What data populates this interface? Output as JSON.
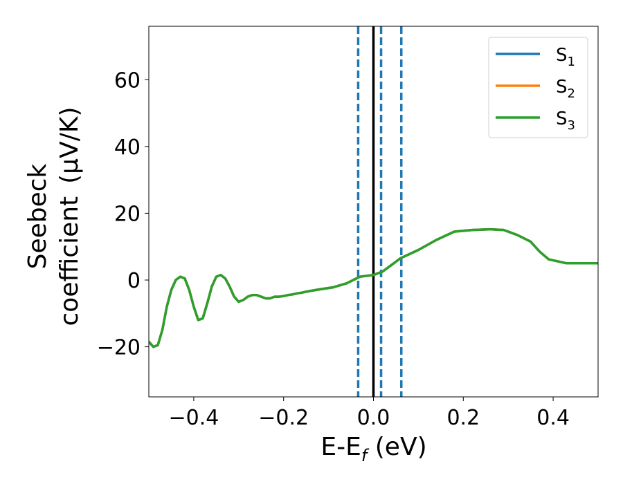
{
  "chart_data": {
    "type": "line",
    "xlabel": "E-E",
    "xlabel_sub": "f",
    "xlabel_unit": " (eV)",
    "ylabel_line1": "Seebeck",
    "ylabel_line2": "coefficient",
    "ylabel_unit": "(μV/K)",
    "xlim": [
      -0.5,
      0.5
    ],
    "ylim": [
      -35,
      76
    ],
    "xticks": [
      -0.4,
      -0.2,
      0.0,
      0.2,
      0.4
    ],
    "xtick_labels": [
      "−0.4",
      "−0.2",
      "0.0",
      "0.2",
      "0.4"
    ],
    "yticks": [
      -20,
      0,
      20,
      40,
      60
    ],
    "ytick_labels": [
      "−20",
      "0",
      "20",
      "40",
      "60"
    ],
    "grid": false,
    "legend_position": "top-right",
    "vertical_lines": [
      {
        "x": 0.0,
        "style": "solid",
        "color": "#000000"
      },
      {
        "x": -0.034,
        "style": "dashed",
        "color": "#1f77b4"
      },
      {
        "x": 0.017,
        "style": "dashed",
        "color": "#1f77b4"
      },
      {
        "x": 0.062,
        "style": "dashed",
        "color": "#1f77b4"
      }
    ],
    "x": [
      -0.5,
      -0.49,
      -0.48,
      -0.47,
      -0.46,
      -0.45,
      -0.44,
      -0.43,
      -0.42,
      -0.41,
      -0.4,
      -0.39,
      -0.38,
      -0.37,
      -0.36,
      -0.35,
      -0.34,
      -0.33,
      -0.32,
      -0.31,
      -0.3,
      -0.29,
      -0.28,
      -0.27,
      -0.26,
      -0.25,
      -0.24,
      -0.23,
      -0.22,
      -0.21,
      -0.2,
      -0.19,
      -0.18,
      -0.17,
      -0.16,
      -0.15,
      -0.12,
      -0.09,
      -0.06,
      -0.03,
      0.0,
      0.02,
      0.04,
      0.06,
      0.1,
      0.14,
      0.18,
      0.22,
      0.26,
      0.29,
      0.32,
      0.35,
      0.37,
      0.39,
      0.41,
      0.43,
      0.45,
      0.47,
      0.49,
      0.5
    ],
    "series": [
      {
        "name": "S",
        "sub": "1",
        "color": "#1f77b4",
        "values": [
          -18.5,
          -20.0,
          -19.5,
          -15.0,
          -8.0,
          -3.0,
          0.0,
          1.0,
          0.5,
          -3.0,
          -8.0,
          -12.0,
          -11.5,
          -7.0,
          -2.0,
          1.0,
          1.5,
          0.5,
          -2.0,
          -5.0,
          -6.5,
          -6.0,
          -5.0,
          -4.5,
          -4.5,
          -5.0,
          -5.5,
          -5.5,
          -5.0,
          -5.0,
          -4.8,
          -4.5,
          -4.3,
          -4.0,
          -3.8,
          -3.5,
          -2.8,
          -2.2,
          -1.0,
          1.0,
          1.5,
          2.5,
          4.5,
          6.5,
          9.0,
          12.0,
          14.5,
          15.0,
          15.2,
          15.0,
          13.5,
          11.5,
          8.5,
          6.2,
          5.6,
          5.0,
          5.0,
          5.0,
          5.0,
          5.0
        ]
      },
      {
        "name": "S",
        "sub": "2",
        "color": "#ff7f0e",
        "values": [
          -18.5,
          -20.0,
          -19.5,
          -15.0,
          -8.0,
          -3.0,
          0.0,
          1.0,
          0.5,
          -3.0,
          -8.0,
          -12.0,
          -11.5,
          -7.0,
          -2.0,
          1.0,
          1.5,
          0.5,
          -2.0,
          -5.0,
          -6.5,
          -6.0,
          -5.0,
          -4.5,
          -4.5,
          -5.0,
          -5.5,
          -5.5,
          -5.0,
          -5.0,
          -4.8,
          -4.5,
          -4.3,
          -4.0,
          -3.8,
          -3.5,
          -2.8,
          -2.2,
          -1.0,
          1.0,
          1.5,
          2.5,
          4.5,
          6.5,
          9.0,
          12.0,
          14.5,
          15.0,
          15.2,
          15.0,
          13.5,
          11.5,
          8.5,
          6.2,
          5.6,
          5.0,
          5.0,
          5.0,
          5.0,
          5.0
        ]
      },
      {
        "name": "S",
        "sub": "3",
        "color": "#2ca02c",
        "values": [
          -18.5,
          -20.0,
          -19.5,
          -15.0,
          -8.0,
          -3.0,
          0.0,
          1.0,
          0.5,
          -3.0,
          -8.0,
          -12.0,
          -11.5,
          -7.0,
          -2.0,
          1.0,
          1.5,
          0.5,
          -2.0,
          -5.0,
          -6.5,
          -6.0,
          -5.0,
          -4.5,
          -4.5,
          -5.0,
          -5.5,
          -5.5,
          -5.0,
          -5.0,
          -4.8,
          -4.5,
          -4.3,
          -4.0,
          -3.8,
          -3.5,
          -2.8,
          -2.2,
          -1.0,
          1.0,
          1.5,
          2.5,
          4.5,
          6.5,
          9.0,
          12.0,
          14.5,
          15.0,
          15.2,
          15.0,
          13.5,
          11.5,
          8.5,
          6.2,
          5.6,
          5.0,
          5.0,
          5.0,
          5.0,
          5.0
        ]
      }
    ]
  }
}
